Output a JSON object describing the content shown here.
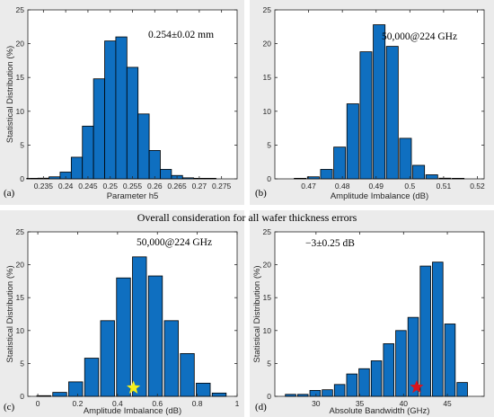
{
  "caption": "Overall consideration for all wafer thickness errors",
  "chart_data": [
    {
      "type": "bar",
      "panel_label": "(a)",
      "annotation": "0.254±0.02 mm",
      "xlabel": "Parameter h5",
      "ylabel": "Statistical Distribution (%)",
      "xlim": [
        0.2315,
        0.2785
      ],
      "ylim": [
        0,
        25
      ],
      "bar_width": 0.0025,
      "x_ticks": [
        0.235,
        0.24,
        0.245,
        0.25,
        0.255,
        0.26,
        0.265,
        0.27,
        0.275
      ],
      "x_tick_labels": [
        "0.235",
        "0.24",
        "0.245",
        "0.25",
        "0.255",
        "0.26",
        "0.265",
        "0.27",
        "0.275"
      ],
      "y_ticks": [
        0,
        5,
        10,
        15,
        20,
        25
      ],
      "x": [
        0.2325,
        0.235,
        0.2375,
        0.24,
        0.2425,
        0.245,
        0.2475,
        0.25,
        0.2525,
        0.255,
        0.2575,
        0.26,
        0.2625,
        0.265,
        0.2675,
        0.27,
        0.2725
      ],
      "values": [
        0.05,
        0.1,
        0.3,
        1.0,
        3.2,
        7.8,
        14.8,
        20.4,
        21.0,
        16.5,
        9.6,
        4.2,
        1.4,
        0.5,
        0.15,
        0.05,
        0.05
      ]
    },
    {
      "type": "bar",
      "panel_label": "(b)",
      "annotation": "50,000@224 GHz",
      "xlabel": "Amplitude Imbalance (dB)",
      "ylabel": "",
      "xlim": [
        0.46,
        0.522
      ],
      "ylim": [
        0,
        25
      ],
      "bar_width": 0.0035,
      "x_ticks": [
        0.47,
        0.48,
        0.49,
        0.5,
        0.51,
        0.52
      ],
      "x_tick_labels": [
        "0.47",
        "0.48",
        "0.49",
        "0.5",
        "0.51",
        "0.52"
      ],
      "y_ticks": [
        0,
        5,
        10,
        15,
        20,
        25
      ],
      "x": [
        0.4675,
        0.4714,
        0.4753,
        0.4792,
        0.4831,
        0.487,
        0.4909,
        0.4948,
        0.4987,
        0.5026,
        0.5065,
        0.5104,
        0.5143
      ],
      "values": [
        0.05,
        0.3,
        1.4,
        4.7,
        11.1,
        18.8,
        22.8,
        19.6,
        6.0,
        2.0,
        0.6,
        0.1,
        0.05
      ]
    },
    {
      "type": "bar",
      "panel_label": "(c)",
      "annotation": "50,000@224 GHz",
      "xlabel": "Amplitude Imbalance (dB)",
      "ylabel": "Statistical Distribution (%)",
      "xlim": [
        -0.05,
        1.0
      ],
      "ylim": [
        0,
        25
      ],
      "bar_width": 0.07,
      "x_ticks": [
        0,
        0.2,
        0.4,
        0.6,
        0.8,
        1
      ],
      "x_tick_labels": [
        "0",
        "0.2",
        "0.4",
        "0.6",
        "0.8",
        "1"
      ],
      "y_ticks": [
        0,
        5,
        10,
        15,
        20,
        25
      ],
      "x": [
        0.03,
        0.11,
        0.19,
        0.27,
        0.35,
        0.43,
        0.51,
        0.59,
        0.67,
        0.75,
        0.83,
        0.91
      ],
      "values": [
        0.1,
        0.6,
        2.2,
        5.8,
        11.5,
        18.0,
        21.2,
        18.3,
        11.5,
        6.5,
        2.0,
        0.5
      ],
      "marker": {
        "shape": "star",
        "color": "#f5ef1a",
        "x": 0.48,
        "y": 1.3
      }
    },
    {
      "type": "bar",
      "panel_label": "(d)",
      "annotation": "−3±0.25 dB",
      "xlabel": "Absolute Bandwidth (GHz)",
      "ylabel": "Statistical Distribution (%)",
      "xlim": [
        25.3,
        49.2
      ],
      "ylim": [
        0,
        25
      ],
      "bar_width": 1.2,
      "x_ticks": [
        30,
        35,
        40,
        45
      ],
      "x_tick_labels": [
        "30",
        "35",
        "40",
        "45"
      ],
      "y_ticks": [
        0,
        5,
        10,
        15,
        20,
        25
      ],
      "x": [
        27.1,
        28.5,
        29.9,
        31.3,
        32.7,
        34.1,
        35.5,
        36.9,
        38.3,
        39.7,
        41.1,
        42.5,
        43.9,
        45.3,
        46.7
      ],
      "values": [
        0.3,
        0.3,
        0.9,
        1.0,
        1.8,
        3.4,
        4.2,
        5.4,
        8.0,
        10.0,
        12.0,
        19.8,
        20.4,
        11.0,
        2.1
      ],
      "marker": {
        "shape": "star",
        "color": "#d9141d",
        "x": 41.5,
        "y": 1.4
      }
    }
  ]
}
